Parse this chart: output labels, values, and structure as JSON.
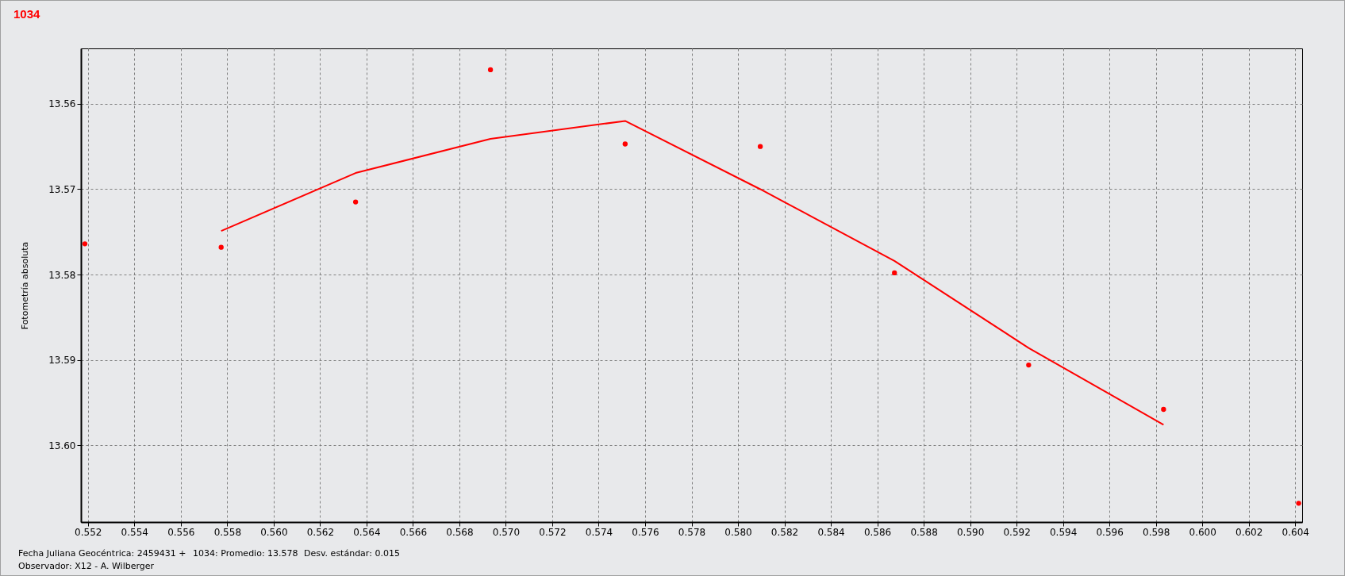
{
  "chart_data": {
    "type": "scatter",
    "title": "1034",
    "ylabel": "Fotometría absoluta",
    "annotations": [
      "Fecha Juliana Geocéntrica: 2459431 +",
      "1034:  Promedio: 13.578",
      "Desv. estándar: 0.015",
      "Observador: X12 - A. Wilberger"
    ],
    "xlim": [
      0.5517,
      0.6043
    ],
    "ylim": [
      13.609,
      13.5535
    ],
    "xticks": [
      0.552,
      0.554,
      0.556,
      0.558,
      {
        "value": 0.56,
        "label": "0.560"
      },
      0.562,
      0.564,
      0.566,
      0.568,
      {
        "value": 0.57,
        "label": "0.570"
      },
      0.572,
      0.574,
      0.576,
      0.578,
      {
        "value": 0.58,
        "label": "0.580"
      },
      0.582,
      0.584,
      0.586,
      0.588,
      {
        "value": 0.59,
        "label": "0.590"
      },
      0.592,
      0.594,
      0.596,
      0.598,
      {
        "value": 0.6,
        "label": "0.600"
      },
      0.602,
      0.604
    ],
    "yticks": [
      13.56,
      13.57,
      13.58,
      13.59,
      {
        "value": 13.6,
        "label": "13.60"
      }
    ],
    "grid": true,
    "series": [
      {
        "marker": "circle",
        "color": "#ff0000",
        "x": [
          0.55187,
          0.55774,
          0.56353,
          0.56934,
          0.57514,
          0.58096,
          0.58674,
          0.59252,
          0.59833,
          0.60415
        ],
        "values": [
          13.5764,
          13.5768,
          13.5715,
          13.556,
          13.5647,
          13.565,
          13.5798,
          13.5906,
          13.5958,
          13.6068
        ]
      },
      {
        "type": "line",
        "color": "#ff0000",
        "x": [
          0.55774,
          0.56353,
          0.56934,
          0.57514,
          0.58096,
          0.58674,
          0.59252,
          0.59833
        ],
        "values": [
          13.5749,
          13.5681,
          13.5641,
          13.562,
          13.57,
          13.5784,
          13.5886,
          13.5976
        ]
      }
    ]
  }
}
